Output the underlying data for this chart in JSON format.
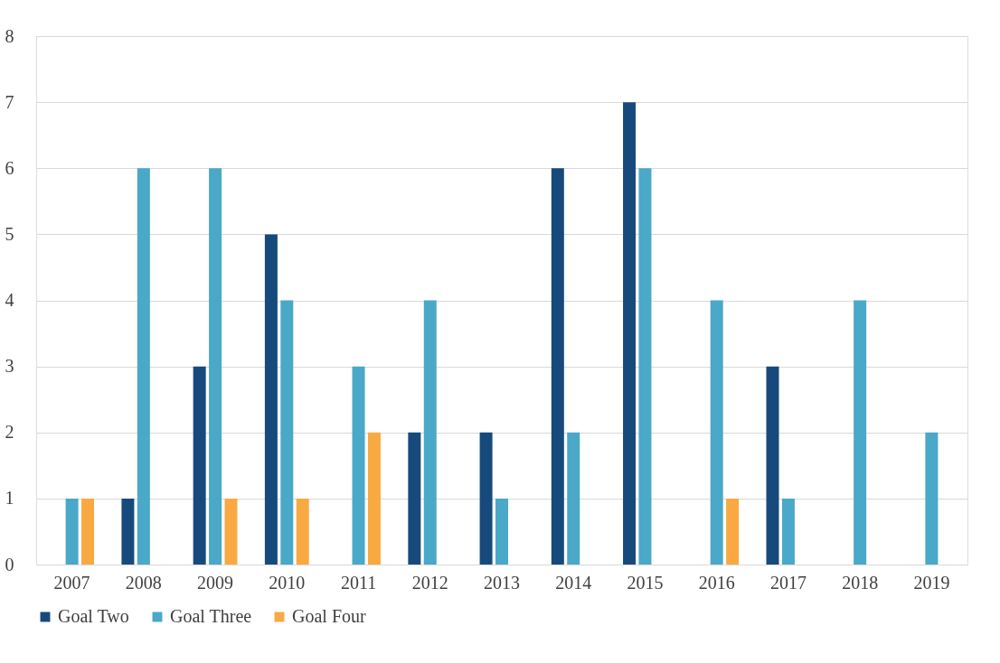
{
  "chart_data": {
    "type": "bar",
    "categories": [
      "2007",
      "2008",
      "2009",
      "2010",
      "2011",
      "2012",
      "2013",
      "2014",
      "2015",
      "2016",
      "2017",
      "2018",
      "2019"
    ],
    "series": [
      {
        "name": "Goal Two",
        "color": "#174a7c",
        "values": [
          0,
          1,
          3,
          5,
          0,
          2,
          2,
          6,
          7,
          0,
          3,
          0,
          0
        ]
      },
      {
        "name": "Goal Three",
        "color": "#4aa8c8",
        "values": [
          1,
          6,
          6,
          4,
          3,
          4,
          1,
          2,
          6,
          4,
          1,
          4,
          2
        ]
      },
      {
        "name": "Goal Four",
        "color": "#f9a942",
        "values": [
          1,
          0,
          1,
          1,
          2,
          0,
          0,
          0,
          0,
          1,
          0,
          0,
          0
        ]
      }
    ],
    "ylim": [
      0,
      8
    ],
    "yticks": [
      0,
      1,
      2,
      3,
      4,
      5,
      6,
      7,
      8
    ],
    "grid": "y",
    "legend": "bottom"
  }
}
